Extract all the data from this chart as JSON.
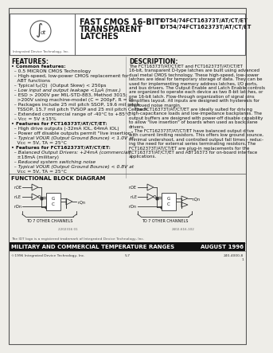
{
  "title_product": "FAST CMOS 16-BIT\nTRANSPARENT\nLATCHES",
  "part_numbers": "IDT54/74FCT16373T/AT/CT/ET\nIDT54/74FCT162373T/AT/CT/ET",
  "features_title": "FEATURES:",
  "description_title": "DESCRIPTION:",
  "functional_block_title": "FUNCTIONAL BLOCK DIAGRAM",
  "features_text": [
    "• Common features:",
    "  – 0.5 MICRON CMOS Technology",
    "  – High-speed, low-power CMOS replacement for",
    "    ABT functions",
    "  – Typical tₚ(Q)  (Output Skew) < 250ps",
    "  – Low input and output leakage <1μA (max.)",
    "  – ESD > 2000V per MIL-STD-883, Method 3015;",
    "    >200V using machine-model (C = 200pF, R = 0)",
    "  – Packages include 25 mil pitch SSOP, 19.6 mil pitch",
    "    TSSOP, 15.7 mil pitch TVSOP and 25 mil pitch Cerpack",
    "  – Extended commercial range of -40°C to +85°C",
    "  – Vcc = 5V ±15%",
    "• Features for FCT16373T/AT/CT/ET:",
    "  – High drive outputs (-32mA IOL, 64mA IOL)",
    "  – Power off disable outputs permit \"live insertion\"",
    "  – Typical VOUR (Output Ground Bounce) < 1.0V at",
    "    Vcc = 5V, TA = 25°C",
    "• Features for FCT162373T/AT/CT/ET:",
    "  – Balanced Output Drivers: +24mA (commercial),",
    "    ±18mA (military)",
    "  – Reduced system switching noise",
    "  – Typical VOUR (Output Ground Bounce) < 0.8V at",
    "    Vcc = 5V, TA = 25°C"
  ],
  "description_text": [
    "The FCT16373T/AT/CT/ET and FCT162373T/AT/CT/ET",
    "16-bit, transparent D-type latches are built using advanced",
    "dual metal CMOS technology. These high-speed, low-power",
    "latches are ideal for temporary storage of data. They can be",
    "used for implementing memory address latches, I/O ports,",
    "and bus drivers. The Output Enable and Latch Enable controls",
    "are organized to operate each device as two 8-bit latches, or",
    "one 16-bit latch. Flow-through organization of signal pins",
    "simplifies layout. All inputs are designed with hysteresis for",
    "improved noise margin.",
    "    The FCT16373T/AT/CT/ET are ideally suited for driving",
    "high-capacitance loads and low-impedance backplanes. The",
    "output buffers are designed with power-off disable capability",
    "to allow \"live insertion\" of boards when used as backplane",
    "drivers.",
    "    The FCT162373T/AT/CT/ET have balanced output drive",
    "with current limiting resistors. This offers low ground bounce,",
    "minimal undershoot, and controlled output fall times - reduc-",
    "ing the need for external series terminating resistors. The",
    "FCT162373T/AT/CT/ET are plug-in replacements for the",
    "FCT16373T/AT/CT/ET and ABT16373 for on-board interface",
    "applications."
  ],
  "footer_trademark": "The IDT logo is a registered trademark of Integrated Device Technology, Inc.",
  "footer_bar_text": "MILITARY AND COMMERCIAL TEMPERATURE RANGES",
  "footer_bar_right": "AUGUST 1996",
  "footer_bottom_left": "©1996 Integrated Device Technology, Inc.",
  "footer_bottom_center": "5.7",
  "footer_bottom_right": "240-4000-8",
  "footer_bottom_right2": "1",
  "bg_color": "#eeede8",
  "header_bg": "#ffffff",
  "text_color": "#111111",
  "diagram_label": "TO 7 OTHER CHANNELS",
  "diagram_ref_left": "2202316 01",
  "diagram_ref_right": "2402-616-102"
}
